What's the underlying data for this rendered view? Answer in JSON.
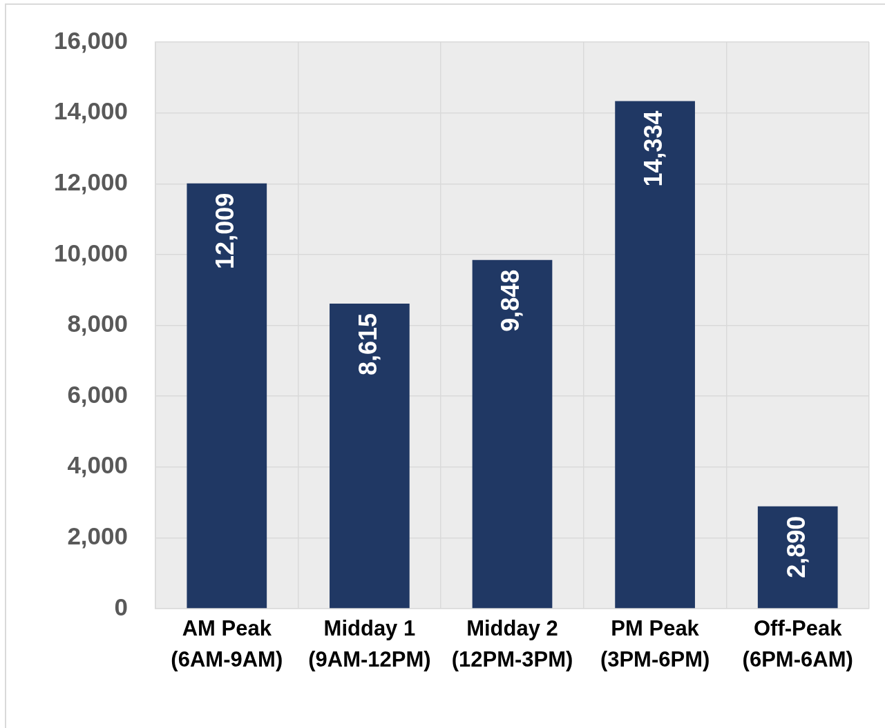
{
  "chart_data": {
    "type": "bar",
    "categories": [
      "AM Peak\n(6AM-9AM)",
      "Midday 1\n(9AM-12PM)",
      "Midday 2\n(12PM-3PM)",
      "PM Peak\n(3PM-6PM)",
      "Off-Peak\n(6PM-6AM)"
    ],
    "values": [
      12009,
      8615,
      9848,
      14334,
      2890
    ],
    "value_labels": [
      "12,009",
      "8,615",
      "9,848",
      "14,334",
      "2,890"
    ],
    "color": "#203864",
    "ylim": [
      0,
      16000
    ],
    "yticks": [
      0,
      {
        "value": 2000,
        "label": "2,000"
      },
      {
        "value": 4000,
        "label": "4,000"
      },
      {
        "value": 6000,
        "label": "6,000"
      },
      {
        "value": 8000,
        "label": "8,000"
      },
      {
        "value": 10000,
        "label": "10,000"
      },
      {
        "value": 12000,
        "label": "12,000"
      },
      {
        "value": 14000,
        "label": "14,000"
      },
      {
        "value": 16000,
        "label": "16,000"
      }
    ],
    "grid": true
  }
}
